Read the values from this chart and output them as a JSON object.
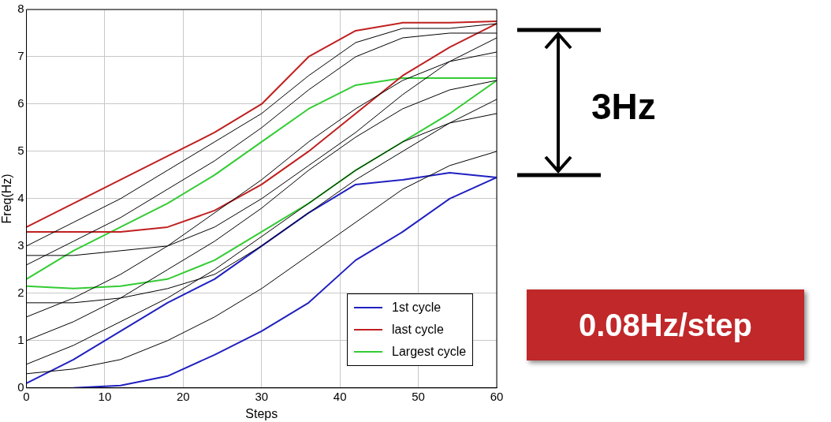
{
  "chart_data": {
    "type": "line",
    "xlabel": "Steps",
    "ylabel": "Freq(Hz)",
    "x": [
      0,
      6,
      12,
      18,
      24,
      30,
      36,
      42,
      48,
      54,
      60
    ],
    "xlim": [
      0,
      60
    ],
    "xticks": [
      0,
      10,
      20,
      30,
      40,
      50,
      60
    ],
    "ylim": [
      0,
      8
    ],
    "yticks": [
      0,
      1,
      2,
      3,
      4,
      5,
      6,
      7,
      8
    ],
    "grid": true,
    "legend": "bottom right",
    "marker": "none",
    "line_style": "solid",
    "annotations": [
      "3Hz",
      "0.08Hz/step"
    ],
    "series": [
      {
        "color": "#000000",
        "values": [
          0.5,
          0.9,
          1.4,
          1.9,
          2.5,
          3.2,
          3.9,
          4.6,
          5.2,
          5.6,
          5.8
        ]
      },
      {
        "color": "#000000",
        "values": [
          1.0,
          1.4,
          1.9,
          2.5,
          3.1,
          3.8,
          4.6,
          5.3,
          5.9,
          6.3,
          6.5
        ]
      },
      {
        "color": "#000000",
        "values": [
          1.5,
          1.9,
          2.4,
          3.0,
          3.7,
          4.4,
          5.2,
          5.9,
          6.5,
          6.9,
          7.1
        ]
      },
      {
        "color": "#000000",
        "values": [
          2.6,
          3.1,
          3.6,
          4.2,
          4.8,
          5.5,
          6.3,
          7.0,
          7.4,
          7.5,
          7.5
        ]
      },
      {
        "color": "#000000",
        "values": [
          3.0,
          3.5,
          4.0,
          4.6,
          5.2,
          5.8,
          6.6,
          7.3,
          7.6,
          7.6,
          7.7
        ]
      },
      {
        "color": "#000000",
        "values": [
          2.8,
          2.8,
          2.9,
          3.0,
          3.4,
          4.0,
          4.7,
          5.4,
          6.2,
          6.9,
          7.4
        ]
      },
      {
        "color": "#000000",
        "values": [
          1.8,
          1.8,
          1.9,
          2.1,
          2.4,
          3.0,
          3.7,
          4.4,
          5.0,
          5.6,
          6.1
        ]
      },
      {
        "color": "#000000",
        "values": [
          0.3,
          0.4,
          0.6,
          1.0,
          1.5,
          2.1,
          2.8,
          3.5,
          4.2,
          4.7,
          5.0
        ]
      },
      {
        "name": "1st cycle",
        "color": "#2020c0",
        "values": [
          0.1,
          0.6,
          1.2,
          1.8,
          2.3,
          3.0,
          3.7,
          4.3,
          4.4,
          4.55,
          4.45
        ]
      },
      {
        "color": "#2020c0",
        "values": [
          null,
          0,
          0.05,
          0.25,
          0.7,
          1.2,
          1.8,
          2.7,
          3.3,
          4.0,
          4.45
        ]
      },
      {
        "name": "last cycle",
        "color": "#c02020",
        "values": [
          3.4,
          3.9,
          4.4,
          4.9,
          5.4,
          6.0,
          7.0,
          7.55,
          7.72,
          7.72,
          7.75
        ]
      },
      {
        "color": "#c02020",
        "values": [
          3.3,
          3.3,
          3.3,
          3.4,
          3.75,
          4.3,
          5.0,
          5.8,
          6.6,
          7.2,
          7.7
        ]
      },
      {
        "name": "Largest cycle",
        "color": "#33cc33",
        "values": [
          2.3,
          2.9,
          3.4,
          3.9,
          4.5,
          5.2,
          5.9,
          6.4,
          6.55,
          6.55,
          6.55
        ]
      },
      {
        "color": "#33cc33",
        "values": [
          2.15,
          2.1,
          2.15,
          2.3,
          2.7,
          3.3,
          3.9,
          4.6,
          5.2,
          5.8,
          6.5
        ]
      }
    ]
  }
}
